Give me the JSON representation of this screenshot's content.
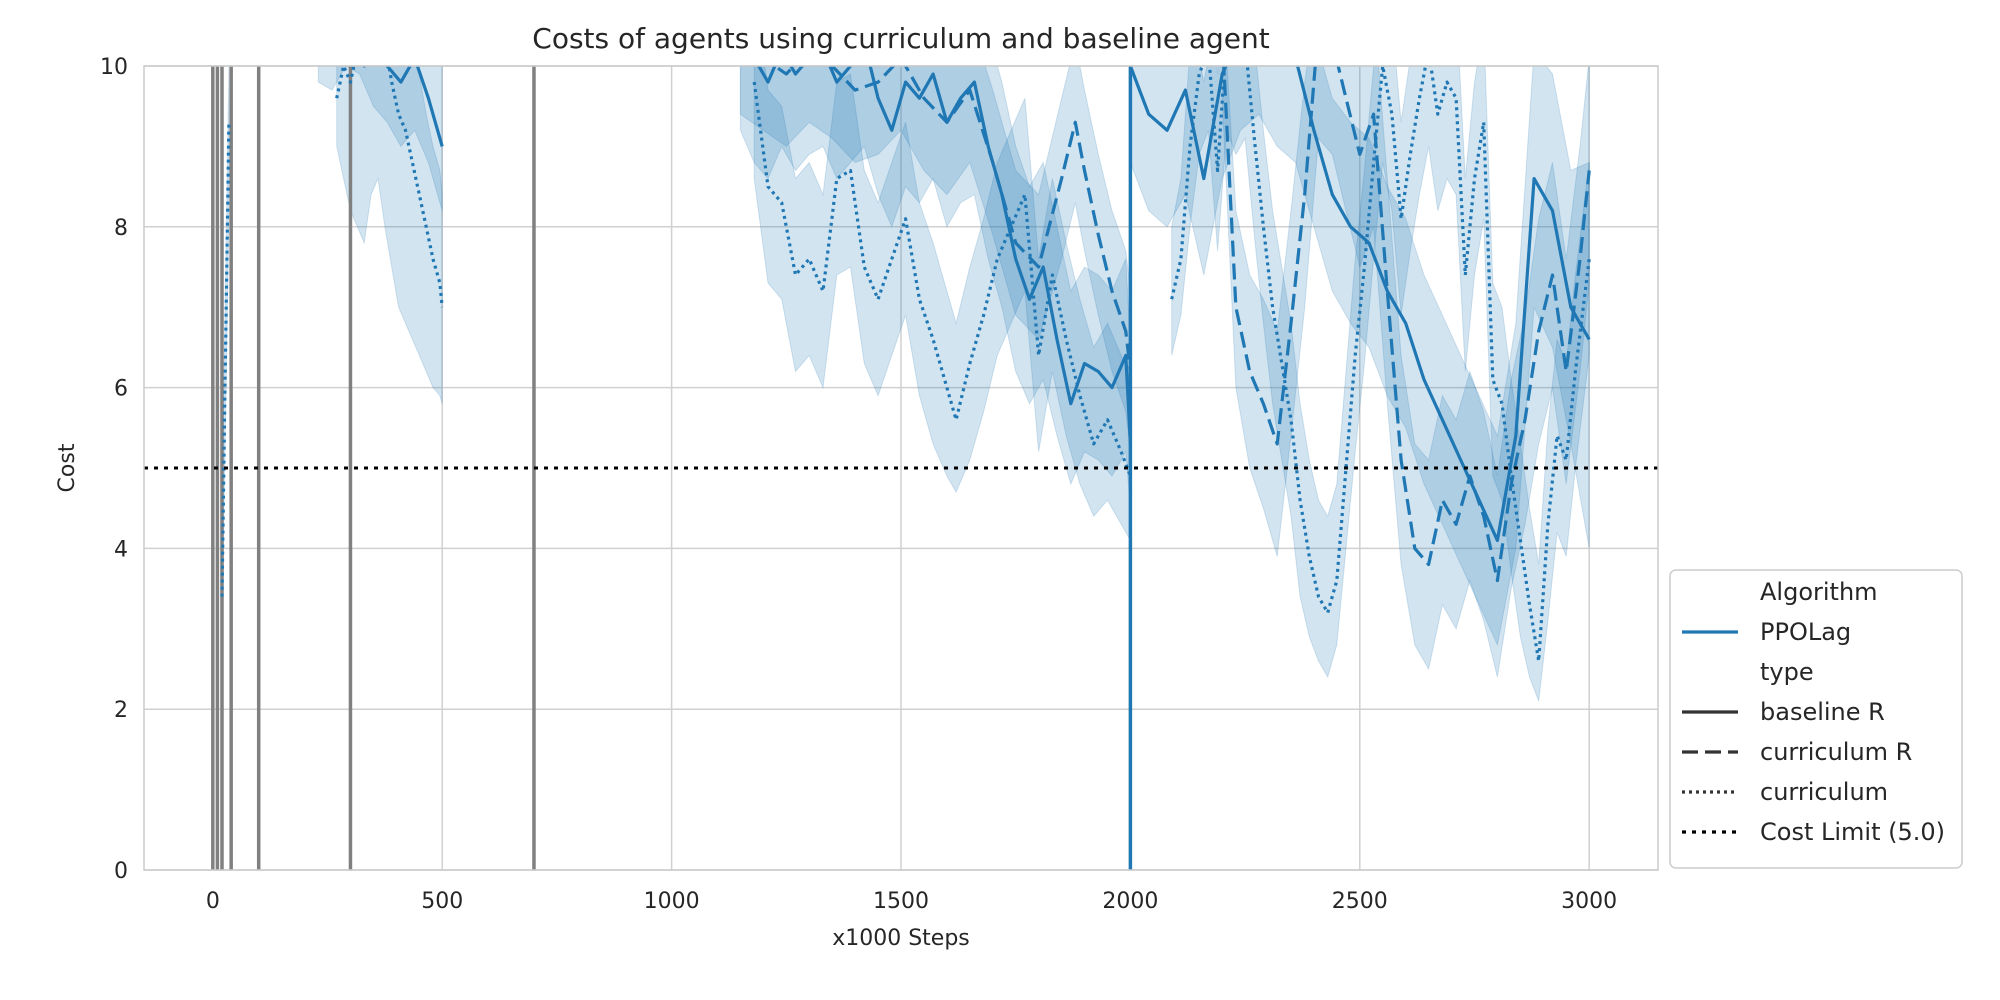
{
  "chart_data": {
    "type": "line",
    "title": "Costs of agents using curriculum and baseline agent",
    "xlabel": "x1000 Steps",
    "ylabel": "Cost",
    "xlim": [
      -150,
      3150
    ],
    "ylim": [
      0,
      10
    ],
    "xticks": [
      0,
      500,
      1000,
      1500,
      2000,
      2500,
      3000
    ],
    "yticks": [
      0,
      2,
      4,
      6,
      8,
      10
    ],
    "grid": true,
    "legend_position": "lower-right outside",
    "colors": {
      "series": "#1f77b4",
      "band": "#1f77b4",
      "vlines": "#808080",
      "grid": "#d0d0d0",
      "limit": "#000000"
    },
    "legend": [
      {
        "kind": "header",
        "label": "Algorithm"
      },
      {
        "kind": "line",
        "dash": "solid",
        "color": "#1f77b4",
        "label": "PPOLag"
      },
      {
        "kind": "header",
        "label": "type"
      },
      {
        "kind": "line",
        "dash": "solid",
        "color": "#333333",
        "label": "baseline R"
      },
      {
        "kind": "line",
        "dash": "dashed",
        "color": "#333333",
        "label": "curriculum R"
      },
      {
        "kind": "line",
        "dash": "dotted",
        "color": "#333333",
        "label": "curriculum"
      },
      {
        "kind": "line",
        "dash": "limit",
        "color": "#000000",
        "label": "Cost Limit (5.0)"
      }
    ],
    "cost_limit": 5.0,
    "stage_lines": [
      0,
      10,
      20,
      40,
      100,
      300,
      700,
      2000
    ],
    "series": [
      {
        "name": "baseline R",
        "dash": "solid",
        "segments": [
          {
            "x": [
              230,
              260,
              290,
              320,
              350,
              380,
              410,
              440,
              470,
              500
            ],
            "y": [
              10.3,
              10.2,
              10.5,
              10.4,
              10.2,
              10.0,
              9.8,
              10.1,
              9.6,
              9.0
            ],
            "lower": [
              9.8,
              9.7,
              10.0,
              9.9,
              9.5,
              9.3,
              9.0,
              9.2,
              8.8,
              8.2
            ],
            "upper": [
              11,
              11,
              11,
              11,
              11,
              11,
              11,
              11,
              11,
              11
            ]
          },
          {
            "x": [
              1150,
              1180,
              1210,
              1240,
              1270,
              1300,
              1330,
              1360,
              1390,
              1420,
              1450,
              1480,
              1510,
              1540,
              1570,
              1600,
              1630,
              1660,
              1690,
              1720,
              1750,
              1780,
              1810,
              1840,
              1870,
              1900,
              1930,
              1960,
              1990,
              2000
            ],
            "y": [
              10.4,
              10.1,
              9.8,
              10.2,
              9.9,
              10.1,
              10.2,
              9.8,
              10.0,
              10.3,
              9.6,
              9.2,
              9.8,
              9.6,
              9.9,
              9.3,
              9.6,
              9.8,
              9.0,
              8.4,
              7.6,
              7.1,
              7.5,
              6.6,
              5.8,
              6.3,
              6.2,
              6.0,
              6.4,
              5.3
            ],
            "lower": [
              9.2,
              8.8,
              8.6,
              9.0,
              8.7,
              8.9,
              9.0,
              8.6,
              8.8,
              9.0,
              8.4,
              8.0,
              8.5,
              8.3,
              8.6,
              8.0,
              8.3,
              8.4,
              7.6,
              7.0,
              6.2,
              5.8,
              6.1,
              5.4,
              4.8,
              5.2,
              5.1,
              4.9,
              5.2,
              4.5
            ],
            "upper": [
              11,
              11,
              11,
              11,
              11,
              11,
              11,
              11,
              11,
              11,
              11,
              11,
              11,
              11,
              11,
              11,
              11,
              11,
              10.4,
              9.8,
              9.0,
              8.5,
              8.8,
              8.0,
              7.2,
              7.5,
              7.4,
              7.2,
              7.6,
              6.5
            ]
          },
          {
            "x": [
              2000,
              2040,
              2080,
              2120,
              2160,
              2200,
              2240,
              2280,
              2320,
              2360,
              2400,
              2440,
              2480,
              2520,
              2560,
              2600,
              2640,
              2680,
              2720,
              2760,
              2800,
              2840,
              2880,
              2920,
              2960,
              3000
            ],
            "y": [
              10.0,
              9.4,
              9.2,
              9.7,
              8.6,
              9.9,
              10.4,
              10.6,
              10.3,
              10.1,
              9.2,
              8.4,
              8.0,
              7.8,
              7.2,
              6.8,
              6.1,
              5.6,
              5.1,
              4.6,
              4.1,
              5.4,
              8.6,
              8.2,
              7.0,
              6.6
            ],
            "lower": [
              8.8,
              8.2,
              8.0,
              8.4,
              7.4,
              8.6,
              9.2,
              9.4,
              9.0,
              8.8,
              8.0,
              7.2,
              6.8,
              6.5,
              5.9,
              5.5,
              4.8,
              4.3,
              3.8,
              3.3,
              2.8,
              4.0,
              7.0,
              6.5,
              5.3,
              4.0
            ],
            "upper": [
              11,
              10.6,
              10.4,
              11,
              9.8,
              11,
              11,
              11,
              11,
              11,
              10.4,
              9.6,
              9.3,
              9.1,
              8.5,
              8.1,
              7.4,
              6.9,
              6.4,
              5.9,
              5.4,
              6.8,
              10.2,
              9.9,
              8.7,
              8.8
            ]
          }
        ]
      },
      {
        "name": "curriculum R",
        "dash": "dashed",
        "segments": [
          {
            "x": [
              1150,
              1200,
              1250,
              1300,
              1350,
              1400,
              1450,
              1500,
              1550,
              1600,
              1650,
              1700,
              1750,
              1800,
              1850,
              1880,
              1900,
              1930,
              1960,
              1990,
              2000
            ],
            "y": [
              10.3,
              10.1,
              9.9,
              10.2,
              10.0,
              9.7,
              9.8,
              10.1,
              9.6,
              9.3,
              9.7,
              8.8,
              7.8,
              7.5,
              8.6,
              9.3,
              8.7,
              7.9,
              7.2,
              6.7,
              6.2
            ],
            "lower": [
              9.4,
              9.2,
              9.0,
              9.3,
              9.1,
              8.8,
              8.9,
              9.2,
              8.7,
              8.4,
              8.8,
              7.9,
              6.9,
              6.6,
              7.6,
              8.3,
              7.7,
              6.9,
              6.2,
              5.7,
              5.2
            ],
            "upper": [
              11,
              11,
              11,
              11,
              11,
              10.6,
              10.7,
              11,
              10.5,
              10.2,
              10.6,
              9.7,
              8.7,
              8.4,
              9.6,
              10.3,
              9.7,
              8.9,
              8.2,
              7.7,
              7.2
            ]
          },
          {
            "x": [
              2200,
              2230,
              2260,
              2290,
              2320,
              2350,
              2380,
              2410,
              2440,
              2470,
              2500,
              2530,
              2560,
              2590,
              2620,
              2650,
              2680,
              2710,
              2740,
              2770,
              2800,
              2830,
              2860,
              2890,
              2920,
              2950,
              2980,
              3000
            ],
            "y": [
              10.4,
              7.0,
              6.2,
              5.8,
              5.3,
              6.8,
              8.4,
              10.5,
              10.3,
              9.6,
              8.9,
              9.4,
              7.2,
              5.1,
              4.0,
              3.8,
              4.6,
              4.3,
              4.9,
              4.4,
              3.6,
              4.8,
              5.6,
              6.7,
              7.4,
              6.2,
              7.6,
              8.7
            ],
            "lower": [
              9.6,
              6.0,
              5.0,
              4.5,
              3.9,
              5.4,
              7.0,
              9.1,
              8.9,
              8.2,
              7.5,
              8.0,
              5.8,
              3.8,
              2.8,
              2.5,
              3.3,
              3.0,
              3.6,
              3.1,
              2.4,
              3.5,
              4.3,
              5.3,
              6.0,
              4.8,
              6.2,
              7.3
            ],
            "upper": [
              11,
              8.2,
              7.4,
              7.1,
              6.7,
              8.2,
              9.8,
              11,
              11,
              11,
              10.3,
              10.8,
              8.6,
              6.4,
              5.3,
              5.1,
              5.9,
              5.6,
              6.2,
              5.7,
              4.9,
              6.1,
              6.9,
              8.1,
              8.8,
              7.6,
              9.0,
              10.1
            ]
          }
        ]
      },
      {
        "name": "curriculum",
        "dash": "dotted",
        "segments": [
          {
            "x": [
              20,
              23,
              26,
              29,
              32,
              35
            ],
            "y": [
              3.4,
              4.6,
              5.8,
              6.9,
              8.1,
              9.3
            ],
            "lower": [
              2.8,
              3.9,
              5.0,
              6.0,
              7.1,
              8.2
            ],
            "upper": [
              4.2,
              5.4,
              6.6,
              7.7,
              8.9,
              10.0
            ]
          },
          {
            "x": [
              270,
              285,
              300,
              315,
              330,
              345,
              360,
              375,
              390,
              405,
              420,
              435,
              450,
              465,
              480,
              495,
              500
            ],
            "y": [
              9.6,
              10.0,
              9.8,
              10.2,
              10.0,
              10.4,
              10.6,
              10.3,
              9.8,
              9.4,
              9.2,
              8.8,
              8.4,
              8.0,
              7.6,
              7.3,
              7.0
            ],
            "lower": [
              9.0,
              8.6,
              8.2,
              8.0,
              7.8,
              8.4,
              8.6,
              8.0,
              7.5,
              7.0,
              6.8,
              6.6,
              6.4,
              6.2,
              6.0,
              5.9,
              5.8
            ],
            "upper": [
              11,
              11,
              11,
              11,
              11,
              11,
              11,
              11,
              11,
              11,
              11,
              10.4,
              9.9,
              9.4,
              9.0,
              8.7,
              8.4
            ]
          },
          {
            "x": [
              1180,
              1210,
              1240,
              1270,
              1300,
              1330,
              1360,
              1390,
              1420,
              1450,
              1480,
              1510,
              1540,
              1570,
              1600,
              1620,
              1650,
              1680,
              1710,
              1740,
              1770,
              1800,
              1830,
              1860,
              1890,
              1920,
              1950,
              1980,
              2000
            ],
            "y": [
              9.8,
              8.5,
              8.3,
              7.4,
              7.6,
              7.2,
              8.6,
              8.7,
              7.5,
              7.1,
              7.6,
              8.1,
              7.1,
              6.6,
              6.0,
              5.6,
              6.3,
              6.9,
              7.6,
              8.0,
              8.4,
              6.4,
              7.4,
              6.6,
              5.9,
              5.3,
              5.6,
              5.2,
              4.9
            ],
            "lower": [
              8.6,
              7.3,
              7.1,
              6.2,
              6.4,
              6.0,
              7.4,
              7.5,
              6.3,
              5.9,
              6.4,
              6.9,
              5.9,
              5.3,
              4.9,
              4.7,
              5.1,
              5.7,
              6.4,
              6.8,
              7.2,
              5.2,
              6.2,
              5.4,
              4.8,
              4.4,
              4.6,
              4.3,
              4.1
            ],
            "upper": [
              11,
              9.7,
              9.5,
              8.6,
              8.8,
              8.4,
              9.8,
              9.9,
              8.7,
              8.3,
              8.8,
              9.3,
              8.3,
              7.8,
              7.2,
              6.8,
              7.5,
              8.1,
              8.8,
              9.2,
              9.6,
              7.6,
              8.6,
              7.8,
              7.1,
              6.5,
              6.8,
              6.4,
              6.1
            ]
          },
          {
            "x": [
              2090,
              2110,
              2130,
              2150,
              2170,
              2190,
              2210,
              2230,
              2250,
              2270,
              2290,
              2310,
              2330,
              2350,
              2370,
              2390,
              2410,
              2430,
              2450,
              2470,
              2490,
              2510,
              2530,
              2550,
              2570,
              2590,
              2610,
              2630,
              2650,
              2670,
              2690,
              2710,
              2730,
              2750,
              2770,
              2790,
              2810,
              2830,
              2850,
              2870,
              2890,
              2910,
              2930,
              2950,
              2970,
              3000
            ],
            "y": [
              7.1,
              7.6,
              9.0,
              9.9,
              10.2,
              8.7,
              10.4,
              10.1,
              10.3,
              9.1,
              8.0,
              7.0,
              6.3,
              5.6,
              4.6,
              3.9,
              3.4,
              3.2,
              3.6,
              5.0,
              6.4,
              7.5,
              8.8,
              10.0,
              9.4,
              8.1,
              8.9,
              9.6,
              10.2,
              9.4,
              9.8,
              9.6,
              7.4,
              8.6,
              9.3,
              6.1,
              5.8,
              4.9,
              4.1,
              3.3,
              2.6,
              4.3,
              5.4,
              5.1,
              6.2,
              7.6
            ],
            "lower": [
              6.4,
              6.9,
              8.0,
              8.9,
              9.2,
              7.7,
              9.2,
              8.9,
              9.1,
              7.9,
              6.8,
              5.8,
              5.1,
              4.4,
              3.4,
              2.9,
              2.6,
              2.4,
              2.8,
              4.0,
              5.2,
              6.3,
              7.6,
              8.8,
              8.2,
              6.9,
              7.7,
              8.4,
              9.0,
              8.2,
              8.6,
              8.4,
              6.2,
              7.4,
              8.1,
              4.9,
              4.6,
              3.7,
              2.9,
              2.4,
              2.1,
              3.1,
              4.2,
              3.9,
              5.0,
              6.4
            ],
            "upper": [
              8.0,
              8.6,
              10.2,
              11,
              11,
              9.9,
              11,
              11,
              11,
              10.3,
              9.2,
              8.2,
              7.5,
              6.8,
              5.8,
              5.1,
              4.6,
              4.4,
              4.8,
              6.2,
              7.6,
              8.7,
              10.0,
              11,
              10.6,
              9.3,
              10.1,
              10.8,
              11,
              10.6,
              11,
              10.8,
              8.6,
              9.8,
              10.5,
              7.3,
              7.0,
              6.1,
              5.3,
              4.5,
              3.8,
              5.5,
              6.6,
              6.3,
              7.4,
              8.8
            ]
          }
        ]
      }
    ]
  }
}
